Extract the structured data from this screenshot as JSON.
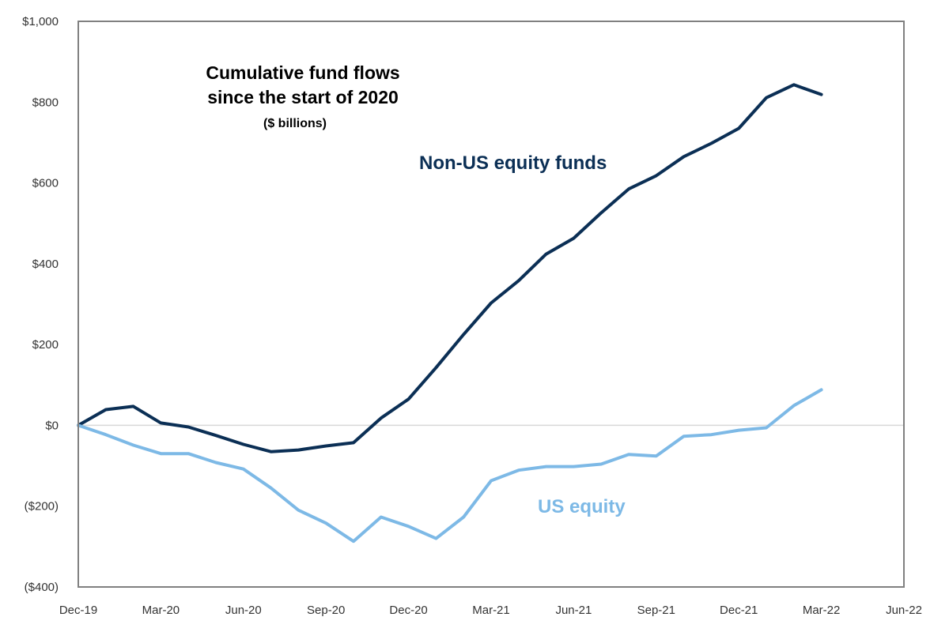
{
  "chart_data": {
    "type": "line",
    "title": "Cumulative fund flows since the start of 2020",
    "title_lines": [
      "Cumulative fund flows",
      "since the start of 2020"
    ],
    "subtitle": "($ billions)",
    "xlabel": "",
    "ylabel": "",
    "ylim": [
      -400,
      1000
    ],
    "yticks": [
      -400,
      -200,
      0,
      200,
      400,
      600,
      800,
      1000
    ],
    "ytick_labels": [
      "($400)",
      "($200)",
      "$0",
      "$200",
      "$400",
      "$600",
      "$800",
      "$1,000"
    ],
    "xlim_months": [
      0,
      30
    ],
    "xtick_labels": [
      "Dec-19",
      "Mar-20",
      "Jun-20",
      "Sep-20",
      "Dec-20",
      "Mar-21",
      "Jun-21",
      "Sep-21",
      "Dec-21",
      "Mar-22",
      "Jun-22"
    ],
    "xtick_month_index": [
      0,
      3,
      6,
      9,
      12,
      15,
      18,
      21,
      24,
      27,
      30
    ],
    "grid": false,
    "zero_line": true,
    "x": [
      "Dec-19",
      "Jan-20",
      "Feb-20",
      "Mar-20",
      "Apr-20",
      "May-20",
      "Jun-20",
      "Jul-20",
      "Aug-20",
      "Sep-20",
      "Oct-20",
      "Nov-20",
      "Dec-20",
      "Jan-21",
      "Feb-21",
      "Mar-21",
      "Apr-21",
      "May-21",
      "Jun-21",
      "Jul-21",
      "Aug-21",
      "Sep-21",
      "Oct-21",
      "Nov-21",
      "Dec-21",
      "Jan-22",
      "Feb-22",
      "Mar-22"
    ],
    "series": [
      {
        "name": "Non-US equity funds",
        "color": "#0b2f55",
        "values": [
          0,
          39,
          47,
          6,
          -4,
          -25,
          -47,
          -65,
          -61,
          -51,
          -43,
          18,
          65,
          143,
          225,
          303,
          358,
          424,
          463,
          526,
          585,
          618,
          665,
          698,
          735,
          811,
          843,
          819
        ]
      },
      {
        "name": "US equity",
        "color": "#7db9e6",
        "values": [
          0,
          -23,
          -49,
          -70,
          -70,
          -92,
          -108,
          -155,
          -210,
          -242,
          -287,
          -227,
          -250,
          -280,
          -227,
          -137,
          -111,
          -102,
          -102,
          -96,
          -72,
          -76,
          -27,
          -23,
          -12,
          -6,
          49,
          88
        ]
      }
    ],
    "annotations": [
      {
        "text": "Non-US equity funds",
        "series": "Non-US equity funds"
      },
      {
        "text": "US equity",
        "series": "US equity"
      }
    ]
  }
}
